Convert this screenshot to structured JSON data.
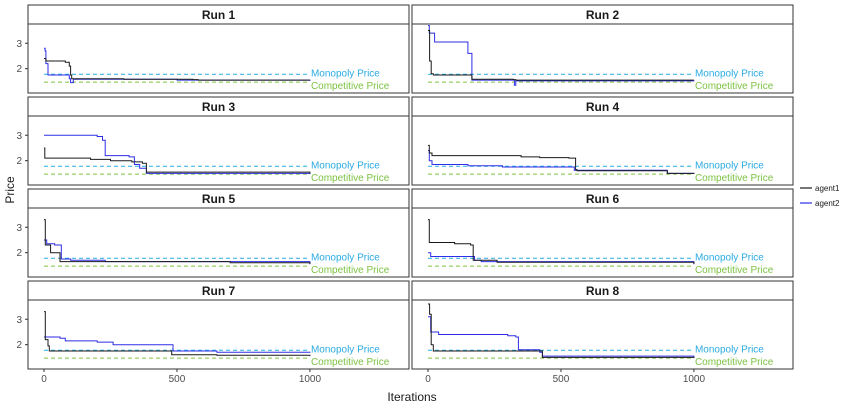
{
  "chart_data": {
    "type": "line",
    "xlabel": "Iterations",
    "ylabel": "Price",
    "xlim": [
      0,
      1000
    ],
    "ylim": [
      1.2,
      3.6
    ],
    "xticks": [
      0,
      500,
      1000
    ],
    "yticks": [
      2,
      3
    ],
    "reference_lines": [
      {
        "name": "Monopoly Price",
        "value": 1.78,
        "color": "#29ABE2"
      },
      {
        "name": "Competitive Price",
        "value": 1.47,
        "color": "#7DC242"
      }
    ],
    "legend": {
      "position": "right",
      "entries": [
        "agent1",
        "agent2"
      ]
    },
    "series_colors": {
      "agent1": "#1a1a1a",
      "agent2": "#2E2EE6"
    },
    "panels": [
      {
        "title": "Run 1",
        "agent1": [
          [
            0,
            2.4
          ],
          [
            6,
            2.4
          ],
          [
            7,
            2.3
          ],
          [
            60,
            2.3
          ],
          [
            80,
            2.25
          ],
          [
            95,
            2.1
          ],
          [
            100,
            1.75
          ],
          [
            104,
            1.6
          ],
          [
            300,
            1.58
          ],
          [
            560,
            1.57
          ],
          [
            580,
            1.55
          ],
          [
            1000,
            1.55
          ]
        ],
        "agent2": [
          [
            0,
            2.8
          ],
          [
            4,
            2.7
          ],
          [
            7,
            2.2
          ],
          [
            15,
            1.75
          ],
          [
            80,
            1.75
          ],
          [
            95,
            1.6
          ],
          [
            100,
            1.45
          ],
          [
            110,
            1.58
          ],
          [
            500,
            1.55
          ],
          [
            1000,
            1.52
          ]
        ]
      },
      {
        "title": "Run 2",
        "agent1": [
          [
            0,
            3.5
          ],
          [
            6,
            2.3
          ],
          [
            12,
            1.8
          ],
          [
            20,
            1.75
          ],
          [
            150,
            1.75
          ],
          [
            165,
            1.58
          ],
          [
            320,
            1.57
          ],
          [
            330,
            1.55
          ],
          [
            1000,
            1.55
          ]
        ],
        "agent2": [
          [
            0,
            3.7
          ],
          [
            5,
            3.4
          ],
          [
            25,
            3.05
          ],
          [
            140,
            3.05
          ],
          [
            150,
            2.6
          ],
          [
            165,
            1.55
          ],
          [
            320,
            1.55
          ],
          [
            325,
            1.35
          ],
          [
            330,
            1.52
          ],
          [
            1000,
            1.5
          ]
        ]
      },
      {
        "title": "Run 3",
        "agent1": [
          [
            0,
            2.5
          ],
          [
            3,
            2.1
          ],
          [
            160,
            2.1
          ],
          [
            175,
            2.05
          ],
          [
            250,
            2.0
          ],
          [
            330,
            1.95
          ],
          [
            370,
            1.9
          ],
          [
            385,
            1.55
          ],
          [
            1000,
            1.48
          ]
        ],
        "agent2": [
          [
            0,
            3.0
          ],
          [
            200,
            2.95
          ],
          [
            220,
            2.8
          ],
          [
            230,
            2.2
          ],
          [
            320,
            2.15
          ],
          [
            340,
            1.85
          ],
          [
            360,
            1.7
          ],
          [
            385,
            1.5
          ],
          [
            1000,
            1.47
          ]
        ]
      },
      {
        "title": "Run 4",
        "agent1": [
          [
            0,
            2.6
          ],
          [
            5,
            2.3
          ],
          [
            15,
            2.2
          ],
          [
            330,
            2.2
          ],
          [
            350,
            2.15
          ],
          [
            420,
            2.12
          ],
          [
            530,
            2.1
          ],
          [
            555,
            1.65
          ],
          [
            560,
            1.6
          ],
          [
            900,
            1.5
          ],
          [
            1000,
            1.48
          ]
        ],
        "agent2": [
          [
            0,
            2.4
          ],
          [
            5,
            2.0
          ],
          [
            15,
            1.85
          ],
          [
            150,
            1.8
          ],
          [
            280,
            1.75
          ],
          [
            550,
            1.62
          ],
          [
            900,
            1.5
          ],
          [
            1000,
            1.48
          ]
        ]
      },
      {
        "title": "Run 5",
        "agent1": [
          [
            0,
            3.3
          ],
          [
            5,
            2.3
          ],
          [
            25,
            2.0
          ],
          [
            60,
            1.65
          ],
          [
            700,
            1.6
          ],
          [
            1000,
            1.55
          ]
        ],
        "agent2": [
          [
            0,
            2.5
          ],
          [
            10,
            2.35
          ],
          [
            40,
            2.3
          ],
          [
            65,
            1.75
          ],
          [
            100,
            1.7
          ],
          [
            230,
            1.65
          ],
          [
            1000,
            1.55
          ]
        ]
      },
      {
        "title": "Run 6",
        "agent1": [
          [
            0,
            3.3
          ],
          [
            5,
            2.4
          ],
          [
            100,
            2.35
          ],
          [
            160,
            2.3
          ],
          [
            170,
            1.7
          ],
          [
            260,
            1.62
          ],
          [
            1000,
            1.55
          ]
        ],
        "agent2": [
          [
            0,
            2.0
          ],
          [
            10,
            1.85
          ],
          [
            160,
            1.85
          ],
          [
            175,
            1.7
          ],
          [
            200,
            1.65
          ],
          [
            1000,
            1.55
          ]
        ]
      },
      {
        "title": "Run 7",
        "agent1": [
          [
            0,
            3.3
          ],
          [
            5,
            2.2
          ],
          [
            15,
            1.95
          ],
          [
            20,
            1.75
          ],
          [
            470,
            1.75
          ],
          [
            480,
            1.6
          ],
          [
            650,
            1.58
          ],
          [
            1000,
            1.55
          ]
        ],
        "agent2": [
          [
            0,
            2.3
          ],
          [
            60,
            2.25
          ],
          [
            80,
            2.15
          ],
          [
            200,
            2.1
          ],
          [
            260,
            2.0
          ],
          [
            470,
            2.0
          ],
          [
            485,
            1.75
          ],
          [
            650,
            1.7
          ],
          [
            1000,
            1.68
          ]
        ]
      },
      {
        "title": "Run 8",
        "agent1": [
          [
            0,
            3.6
          ],
          [
            6,
            3.2
          ],
          [
            12,
            2.0
          ],
          [
            20,
            1.75
          ],
          [
            420,
            1.75
          ],
          [
            430,
            1.5
          ],
          [
            1000,
            1.47
          ]
        ],
        "agent2": [
          [
            0,
            3.1
          ],
          [
            10,
            2.5
          ],
          [
            40,
            2.4
          ],
          [
            300,
            2.35
          ],
          [
            330,
            2.3
          ],
          [
            340,
            1.8
          ],
          [
            420,
            1.7
          ],
          [
            430,
            1.55
          ],
          [
            1000,
            1.5
          ]
        ]
      }
    ]
  }
}
